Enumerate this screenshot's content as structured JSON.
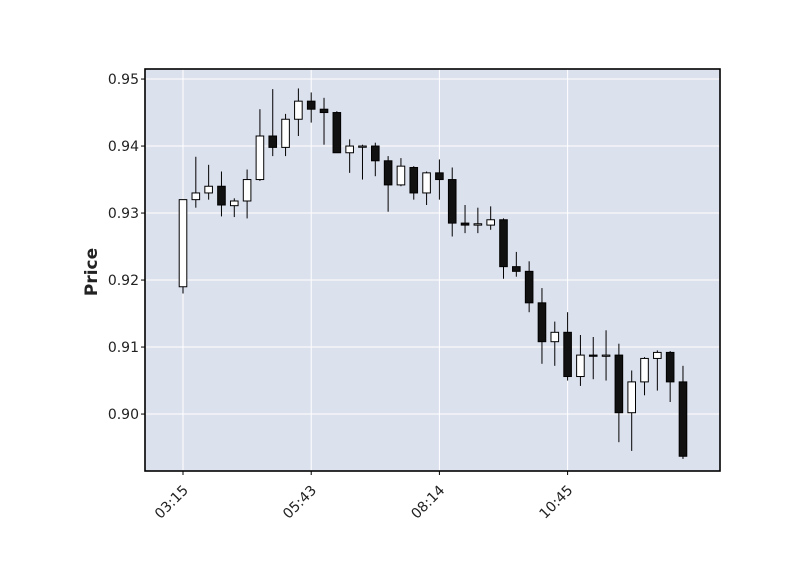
{
  "chart_data": {
    "type": "candlestick",
    "title": "",
    "xlabel": "",
    "ylabel": "Price",
    "ylim": [
      0.8915,
      0.9515
    ],
    "yticks": [
      0.9,
      0.91,
      0.92,
      0.93,
      0.94,
      0.95
    ],
    "ytick_labels": [
      "0.90",
      "0.91",
      "0.92",
      "0.93",
      "0.94",
      "0.95"
    ],
    "xticks": [
      0,
      10,
      20,
      30
    ],
    "xtick_labels": [
      "03:15",
      "05:43",
      "08:14",
      "10:45"
    ],
    "grid": true,
    "colors": {
      "up": "#ffffff",
      "down": "#111111",
      "edge": "#000000",
      "background": "#dce1ee",
      "grid": "#ffffff"
    },
    "candles": [
      {
        "o": 0.919,
        "h": 0.932,
        "l": 0.918,
        "c": 0.932
      },
      {
        "o": 0.932,
        "h": 0.9384,
        "l": 0.9308,
        "c": 0.933
      },
      {
        "o": 0.933,
        "h": 0.9372,
        "l": 0.932,
        "c": 0.934
      },
      {
        "o": 0.934,
        "h": 0.9362,
        "l": 0.9295,
        "c": 0.9312
      },
      {
        "o": 0.9311,
        "h": 0.9322,
        "l": 0.9294,
        "c": 0.9318
      },
      {
        "o": 0.9318,
        "h": 0.9365,
        "l": 0.9292,
        "c": 0.935
      },
      {
        "o": 0.935,
        "h": 0.9455,
        "l": 0.9348,
        "c": 0.9415
      },
      {
        "o": 0.9415,
        "h": 0.9485,
        "l": 0.9385,
        "c": 0.9398
      },
      {
        "o": 0.9398,
        "h": 0.9448,
        "l": 0.9385,
        "c": 0.944
      },
      {
        "o": 0.944,
        "h": 0.9486,
        "l": 0.9415,
        "c": 0.9467
      },
      {
        "o": 0.9467,
        "h": 0.948,
        "l": 0.9435,
        "c": 0.9455
      },
      {
        "o": 0.9455,
        "h": 0.9472,
        "l": 0.9402,
        "c": 0.945
      },
      {
        "o": 0.945,
        "h": 0.9452,
        "l": 0.939,
        "c": 0.939
      },
      {
        "o": 0.939,
        "h": 0.941,
        "l": 0.936,
        "c": 0.94
      },
      {
        "o": 0.94,
        "h": 0.9402,
        "l": 0.935,
        "c": 0.94
      },
      {
        "o": 0.94,
        "h": 0.9405,
        "l": 0.9355,
        "c": 0.9378
      },
      {
        "o": 0.9378,
        "h": 0.9385,
        "l": 0.9302,
        "c": 0.9342
      },
      {
        "o": 0.9342,
        "h": 0.9382,
        "l": 0.934,
        "c": 0.937
      },
      {
        "o": 0.9368,
        "h": 0.937,
        "l": 0.932,
        "c": 0.933
      },
      {
        "o": 0.933,
        "h": 0.9362,
        "l": 0.9312,
        "c": 0.936
      },
      {
        "o": 0.936,
        "h": 0.938,
        "l": 0.932,
        "c": 0.935
      },
      {
        "o": 0.935,
        "h": 0.9368,
        "l": 0.9265,
        "c": 0.9285
      },
      {
        "o": 0.9285,
        "h": 0.9312,
        "l": 0.927,
        "c": 0.9282
      },
      {
        "o": 0.9282,
        "h": 0.9308,
        "l": 0.927,
        "c": 0.9284
      },
      {
        "o": 0.9282,
        "h": 0.931,
        "l": 0.9275,
        "c": 0.929
      },
      {
        "o": 0.929,
        "h": 0.9292,
        "l": 0.9202,
        "c": 0.922
      },
      {
        "o": 0.922,
        "h": 0.9242,
        "l": 0.9205,
        "c": 0.9213
      },
      {
        "o": 0.9213,
        "h": 0.9228,
        "l": 0.9152,
        "c": 0.9166
      },
      {
        "o": 0.9166,
        "h": 0.9188,
        "l": 0.9075,
        "c": 0.9108
      },
      {
        "o": 0.9108,
        "h": 0.9138,
        "l": 0.9072,
        "c": 0.9122
      },
      {
        "o": 0.9122,
        "h": 0.9152,
        "l": 0.905,
        "c": 0.9056
      },
      {
        "o": 0.9056,
        "h": 0.9118,
        "l": 0.9042,
        "c": 0.9088
      },
      {
        "o": 0.9088,
        "h": 0.9115,
        "l": 0.9052,
        "c": 0.9087
      },
      {
        "o": 0.9088,
        "h": 0.9125,
        "l": 0.905,
        "c": 0.9088
      },
      {
        "o": 0.9088,
        "h": 0.9105,
        "l": 0.8958,
        "c": 0.9002
      },
      {
        "o": 0.9002,
        "h": 0.9065,
        "l": 0.8945,
        "c": 0.9048
      },
      {
        "o": 0.9048,
        "h": 0.9085,
        "l": 0.9028,
        "c": 0.9083
      },
      {
        "o": 0.9083,
        "h": 0.9095,
        "l": 0.9035,
        "c": 0.9092
      },
      {
        "o": 0.9092,
        "h": 0.9094,
        "l": 0.9018,
        "c": 0.9048
      },
      {
        "o": 0.9048,
        "h": 0.9072,
        "l": 0.8933,
        "c": 0.8937
      }
    ]
  }
}
